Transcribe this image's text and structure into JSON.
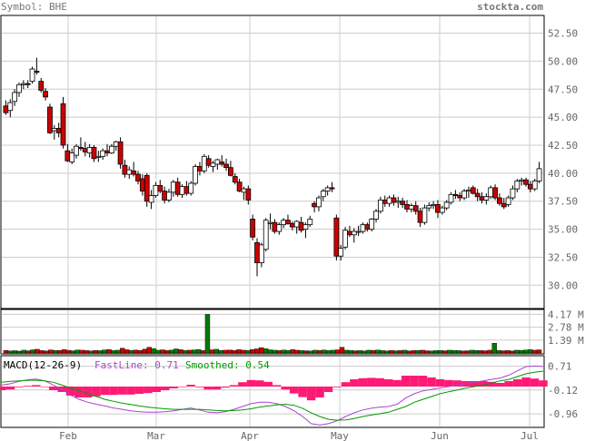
{
  "header": {
    "symbol_label": "Symbol: BHE",
    "site": "stockta.com"
  },
  "colors": {
    "up": "#ffffff",
    "down": "#cc0000",
    "vol_up": "#007a00",
    "vol_down": "#cc0000",
    "macd_hist": "#ff1a75",
    "fast_line": "#aa44cc",
    "smooth_line": "#009900",
    "grid": "#cccccc"
  },
  "chart_data": [
    {
      "type": "candlestick",
      "name": "price",
      "ylim": [
        28.0,
        54.0
      ],
      "y_ticks": [
        "52.50",
        "50.00",
        "47.50",
        "45.00",
        "42.50",
        "40.00",
        "37.50",
        "35.00",
        "32.50",
        "30.00"
      ],
      "x_ticks": [
        "Feb",
        "Mar",
        "Apr",
        "May",
        "Jun",
        "Jul"
      ],
      "candles": [
        [
          46.0,
          46.5,
          45.2,
          45.4
        ],
        [
          45.6,
          46.6,
          45.0,
          46.3
        ],
        [
          46.4,
          47.5,
          46.0,
          47.2
        ],
        [
          47.2,
          48.1,
          46.8,
          47.9
        ],
        [
          47.9,
          48.3,
          47.5,
          48.0
        ],
        [
          48.0,
          48.3,
          47.6,
          47.9
        ],
        [
          48.2,
          49.5,
          48.0,
          49.3
        ],
        [
          49.1,
          50.3,
          48.8,
          49.0
        ],
        [
          48.2,
          48.5,
          47.2,
          47.4
        ],
        [
          47.3,
          47.6,
          46.5,
          46.8
        ],
        [
          45.9,
          46.2,
          43.5,
          43.6
        ],
        [
          43.8,
          44.3,
          43.0,
          44.0
        ],
        [
          44.0,
          44.5,
          43.2,
          43.6
        ],
        [
          46.2,
          46.8,
          42.2,
          42.5
        ],
        [
          42.0,
          42.6,
          41.0,
          41.1
        ],
        [
          41.0,
          42.2,
          40.8,
          41.8
        ],
        [
          41.6,
          42.6,
          41.3,
          42.4
        ],
        [
          42.3,
          43.2,
          42.0,
          42.2
        ],
        [
          42.2,
          42.8,
          41.5,
          41.9
        ],
        [
          41.8,
          42.6,
          41.4,
          42.3
        ],
        [
          42.3,
          42.5,
          41.0,
          41.3
        ],
        [
          41.4,
          42.0,
          41.0,
          41.5
        ],
        [
          41.5,
          42.2,
          41.2,
          42.0
        ],
        [
          42.0,
          42.6,
          41.5,
          41.8
        ],
        [
          41.8,
          42.6,
          41.7,
          42.4
        ],
        [
          42.4,
          42.9,
          42.0,
          42.8
        ],
        [
          42.8,
          43.2,
          40.4,
          40.8
        ],
        [
          40.7,
          41.2,
          39.6,
          39.9
        ],
        [
          39.9,
          40.6,
          39.5,
          40.3
        ],
        [
          40.2,
          41.0,
          39.7,
          39.9
        ],
        [
          39.9,
          40.2,
          39.0,
          39.3
        ],
        [
          39.5,
          39.9,
          38.0,
          38.4
        ],
        [
          39.8,
          40.0,
          37.0,
          37.5
        ],
        [
          37.4,
          38.5,
          36.8,
          38.0
        ],
        [
          38.0,
          39.2,
          37.8,
          38.9
        ],
        [
          38.9,
          39.4,
          38.2,
          38.4
        ],
        [
          38.4,
          38.8,
          37.3,
          37.6
        ],
        [
          37.6,
          38.6,
          37.4,
          38.3
        ],
        [
          38.3,
          39.4,
          37.9,
          39.2
        ],
        [
          39.2,
          39.6,
          37.9,
          38.1
        ],
        [
          38.1,
          39.0,
          37.8,
          38.8
        ],
        [
          38.8,
          39.3,
          38.0,
          38.2
        ],
        [
          38.2,
          39.3,
          38.0,
          39.1
        ],
        [
          39.1,
          40.8,
          38.9,
          40.6
        ],
        [
          40.6,
          41.0,
          39.8,
          40.2
        ],
        [
          40.2,
          41.7,
          40.0,
          41.5
        ],
        [
          41.3,
          41.6,
          40.5,
          40.7
        ],
        [
          40.6,
          41.1,
          40.1,
          40.9
        ],
        [
          40.8,
          41.3,
          40.3,
          41.2
        ],
        [
          41.0,
          41.6,
          40.6,
          40.8
        ],
        [
          40.8,
          41.3,
          40.2,
          40.5
        ],
        [
          40.5,
          41.1,
          39.7,
          39.8
        ],
        [
          39.7,
          40.0,
          39.0,
          39.2
        ],
        [
          39.2,
          39.5,
          38.3,
          38.4
        ],
        [
          38.3,
          38.8,
          37.6,
          38.6
        ],
        [
          38.6,
          38.9,
          37.2,
          37.6
        ],
        [
          35.9,
          36.3,
          34.0,
          34.3
        ],
        [
          33.8,
          34.2,
          30.8,
          32.0
        ],
        [
          32.0,
          33.8,
          31.6,
          33.6
        ],
        [
          33.2,
          36.0,
          33.0,
          35.8
        ],
        [
          35.5,
          36.4,
          35.0,
          35.6
        ],
        [
          35.6,
          35.9,
          34.6,
          34.8
        ],
        [
          34.8,
          35.6,
          34.5,
          35.4
        ],
        [
          35.4,
          36.0,
          35.1,
          35.8
        ],
        [
          35.8,
          36.3,
          35.4,
          35.5
        ],
        [
          35.5,
          35.7,
          34.9,
          35.2
        ],
        [
          35.2,
          35.8,
          34.6,
          35.7
        ],
        [
          35.6,
          36.1,
          34.7,
          34.9
        ],
        [
          35.0,
          35.6,
          34.2,
          35.4
        ],
        [
          35.4,
          36.2,
          35.2,
          35.9
        ],
        [
          37.3,
          37.5,
          36.5,
          37.0
        ],
        [
          37.0,
          38.0,
          36.6,
          37.8
        ],
        [
          37.9,
          38.6,
          37.5,
          38.4
        ],
        [
          38.4,
          38.9,
          38.0,
          38.7
        ],
        [
          38.7,
          39.2,
          38.3,
          38.6
        ],
        [
          36.0,
          36.3,
          32.2,
          32.6
        ],
        [
          32.6,
          33.6,
          32.2,
          33.3
        ],
        [
          33.4,
          35.2,
          33.2,
          34.9
        ],
        [
          34.8,
          35.3,
          34.3,
          34.5
        ],
        [
          34.5,
          35.1,
          33.8,
          34.8
        ],
        [
          34.8,
          35.3,
          34.4,
          34.8
        ],
        [
          34.8,
          35.6,
          34.6,
          35.4
        ],
        [
          35.4,
          35.6,
          34.8,
          35.0
        ],
        [
          35.0,
          36.0,
          34.8,
          35.9
        ],
        [
          35.9,
          36.8,
          35.6,
          36.6
        ],
        [
          36.6,
          37.9,
          36.4,
          37.6
        ],
        [
          37.6,
          38.0,
          37.0,
          37.3
        ],
        [
          37.3,
          38.0,
          37.0,
          37.8
        ],
        [
          37.8,
          38.1,
          37.1,
          37.4
        ],
        [
          37.4,
          37.9,
          36.9,
          37.5
        ],
        [
          37.5,
          37.8,
          36.9,
          37.2
        ],
        [
          37.2,
          37.6,
          36.5,
          36.8
        ],
        [
          36.8,
          37.3,
          36.5,
          37.1
        ],
        [
          37.1,
          37.5,
          36.3,
          36.6
        ],
        [
          36.6,
          36.9,
          35.2,
          35.6
        ],
        [
          35.6,
          37.2,
          35.4,
          36.9
        ],
        [
          36.9,
          37.4,
          36.6,
          37.1
        ],
        [
          37.1,
          37.5,
          36.8,
          37.2
        ],
        [
          37.2,
          37.6,
          36.0,
          36.5
        ],
        [
          36.5,
          37.1,
          36.3,
          36.9
        ],
        [
          36.9,
          37.6,
          36.7,
          37.4
        ],
        [
          37.4,
          38.3,
          37.2,
          38.1
        ],
        [
          38.1,
          38.5,
          37.7,
          38.0
        ],
        [
          38.0,
          38.3,
          37.5,
          37.8
        ],
        [
          37.8,
          38.6,
          37.6,
          38.4
        ],
        [
          38.4,
          38.8,
          37.8,
          38.5
        ],
        [
          38.7,
          38.9,
          38.1,
          38.2
        ],
        [
          38.2,
          38.6,
          37.5,
          37.9
        ],
        [
          37.9,
          38.3,
          37.3,
          37.6
        ],
        [
          37.6,
          38.2,
          37.2,
          37.9
        ],
        [
          37.9,
          38.9,
          37.7,
          38.7
        ],
        [
          38.7,
          39.0,
          37.6,
          37.8
        ],
        [
          37.8,
          38.2,
          37.1,
          37.3
        ],
        [
          37.3,
          37.8,
          36.8,
          37.0
        ],
        [
          37.2,
          38.0,
          37.0,
          37.8
        ],
        [
          37.8,
          38.9,
          37.6,
          38.6
        ],
        [
          38.6,
          39.5,
          38.3,
          39.3
        ],
        [
          39.3,
          39.6,
          38.9,
          39.4
        ],
        [
          39.4,
          39.6,
          38.8,
          39.0
        ],
        [
          39.0,
          39.3,
          38.3,
          38.6
        ],
        [
          38.6,
          39.5,
          38.4,
          39.3
        ],
        [
          39.3,
          41.0,
          39.1,
          40.4
        ]
      ]
    },
    {
      "type": "bar",
      "name": "volume",
      "ylim": [
        0,
        4.6
      ],
      "y_ticks": [
        "4.17 M",
        "2.78 M",
        "1.39 M"
      ],
      "values": [
        0.28,
        0.22,
        0.25,
        0.2,
        0.3,
        0.24,
        0.34,
        0.4,
        0.26,
        0.22,
        0.33,
        0.28,
        0.27,
        0.36,
        0.29,
        0.24,
        0.32,
        0.3,
        0.26,
        0.22,
        0.28,
        0.25,
        0.33,
        0.38,
        0.26,
        0.3,
        0.52,
        0.35,
        0.28,
        0.31,
        0.27,
        0.42,
        0.62,
        0.46,
        0.3,
        0.34,
        0.26,
        0.32,
        0.44,
        0.36,
        0.28,
        0.3,
        0.33,
        0.38,
        0.26,
        4.17,
        0.34,
        0.4,
        0.28,
        0.3,
        0.32,
        0.26,
        0.36,
        0.3,
        0.28,
        0.38,
        0.44,
        0.58,
        0.46,
        0.34,
        0.3,
        0.26,
        0.32,
        0.28,
        0.36,
        0.3,
        0.26,
        0.24,
        0.22,
        0.3,
        0.28,
        0.32,
        0.26,
        0.3,
        0.34,
        0.62,
        0.3,
        0.28,
        0.24,
        0.26,
        0.22,
        0.3,
        0.28,
        0.32,
        0.26,
        0.22,
        0.28,
        0.24,
        0.26,
        0.3,
        0.22,
        0.26,
        0.28,
        0.3,
        0.24,
        0.22,
        0.26,
        0.28,
        0.24,
        0.3,
        0.28,
        0.26,
        0.22,
        0.24,
        0.3,
        0.28,
        0.26,
        0.24,
        0.3,
        1.05,
        0.28,
        0.24,
        0.26,
        0.22,
        0.3,
        0.28,
        0.32,
        0.36,
        0.3,
        0.34
      ]
    },
    {
      "type": "line",
      "name": "macd",
      "title": "MACD(12-26-9)",
      "fast_label": "FastLine: 0.71",
      "smooth_label": "Smoothed: 0.54",
      "ylim": [
        -1.4,
        1.05
      ],
      "y_ticks": [
        "0.71",
        "-0.12",
        "-0.96"
      ],
      "y_tick_values": [
        0.71,
        -0.12,
        -0.96
      ],
      "series": [
        {
          "name": "FastLine",
          "values": [
            0.05,
            0.1,
            0.18,
            0.24,
            0.26,
            0.2,
            0.05,
            -0.1,
            -0.3,
            -0.45,
            -0.55,
            -0.62,
            -0.68,
            -0.75,
            -0.8,
            -0.85,
            -0.88,
            -0.9,
            -0.9,
            -0.88,
            -0.85,
            -0.8,
            -0.75,
            -0.82,
            -0.9,
            -0.92,
            -0.88,
            -0.8,
            -0.7,
            -0.6,
            -0.55,
            -0.55,
            -0.6,
            -0.7,
            -0.85,
            -1.05,
            -1.3,
            -1.35,
            -1.3,
            -1.2,
            -1.05,
            -0.92,
            -0.82,
            -0.76,
            -0.72,
            -0.7,
            -0.62,
            -0.4,
            -0.25,
            -0.15,
            -0.1,
            -0.05,
            0.0,
            0.05,
            0.1,
            0.15,
            0.2,
            0.25,
            0.3,
            0.4,
            0.55,
            0.7,
            0.72,
            0.71
          ]
        },
        {
          "name": "Smoothed",
          "values": [
            0.15,
            0.18,
            0.2,
            0.22,
            0.22,
            0.2,
            0.15,
            0.05,
            -0.05,
            -0.15,
            -0.25,
            -0.35,
            -0.45,
            -0.52,
            -0.58,
            -0.63,
            -0.68,
            -0.72,
            -0.75,
            -0.78,
            -0.8,
            -0.8,
            -0.8,
            -0.8,
            -0.82,
            -0.84,
            -0.85,
            -0.84,
            -0.82,
            -0.78,
            -0.72,
            -0.68,
            -0.64,
            -0.62,
            -0.66,
            -0.76,
            -0.92,
            -1.05,
            -1.15,
            -1.18,
            -1.17,
            -1.12,
            -1.05,
            -1.0,
            -0.95,
            -0.9,
            -0.8,
            -0.7,
            -0.55,
            -0.45,
            -0.35,
            -0.25,
            -0.18,
            -0.12,
            -0.05,
            0.0,
            0.05,
            0.12,
            0.2,
            0.25,
            0.35,
            0.45,
            0.5,
            0.54
          ]
        }
      ]
    }
  ]
}
